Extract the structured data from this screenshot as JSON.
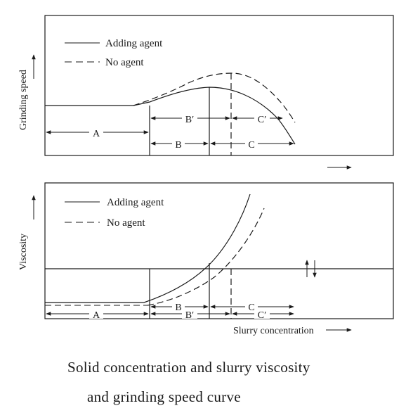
{
  "top_panel": {
    "y_axis_label": "Grinding speed",
    "legend": {
      "adding_agent": "Adding agent",
      "no_agent": "No agent"
    },
    "regions": {
      "a": "A",
      "b": "B",
      "c": "C",
      "b_prime": "B′",
      "c_prime": "C′"
    }
  },
  "bottom_panel": {
    "y_axis_label": "Viscosity",
    "x_axis_label": "Slurry concentration",
    "legend": {
      "adding_agent": "Adding agent",
      "no_agent": "No agent"
    },
    "regions": {
      "a": "A",
      "b": "B",
      "c": "C",
      "b_prime": "B′",
      "c_prime": "C′"
    }
  },
  "caption": {
    "line1": "Solid concentration and slurry viscosity",
    "line2": "and grinding speed curve"
  },
  "colors": {
    "ink": "#1a1a1a",
    "background": "#ffffff"
  }
}
